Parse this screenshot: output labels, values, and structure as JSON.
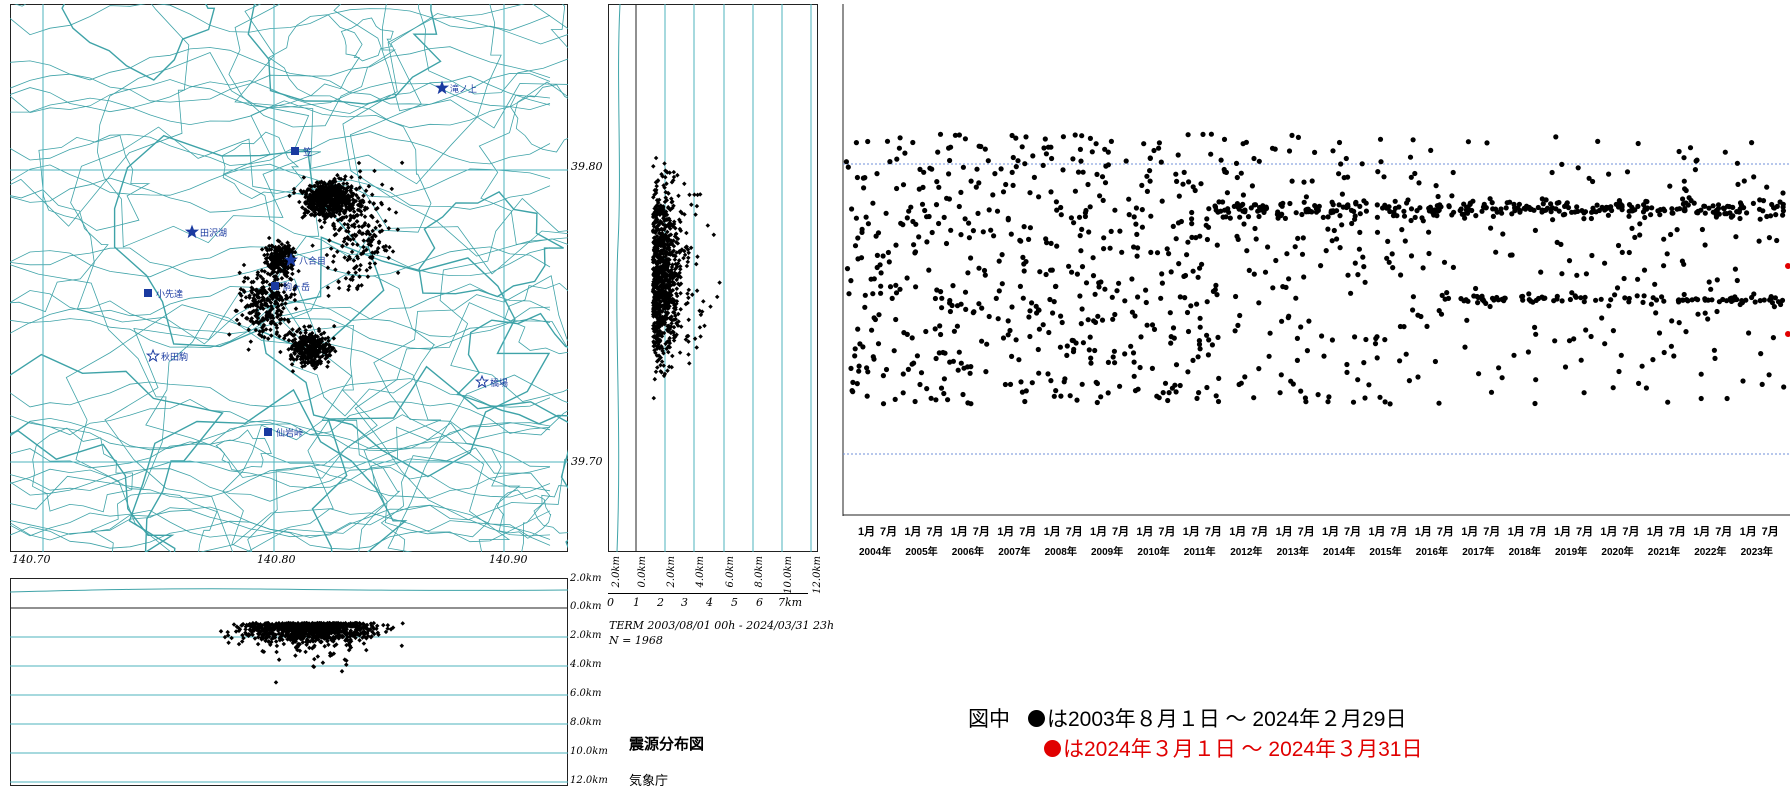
{
  "map": {
    "lat_labels": [
      "39.80",
      "39.70"
    ],
    "lon_labels": [
      "140.70",
      "140.80",
      "140.90"
    ],
    "places": [
      {
        "id": "taki",
        "name": "滝ノ上",
        "marker": "star-filled"
      },
      {
        "id": "kasa",
        "name": "笠",
        "marker": "square-filled"
      },
      {
        "id": "tazawako",
        "name": "田沢湖",
        "marker": "star-filled"
      },
      {
        "id": "hachimantai",
        "name": "八合目",
        "marker": "star-filled"
      },
      {
        "id": "komaga",
        "name": "駒ヶ岳",
        "marker": "square-filled"
      },
      {
        "id": "kosomu",
        "name": "小先達",
        "marker": "square-filled"
      },
      {
        "id": "akitakoma",
        "name": "秋田駒",
        "marker": "star-open"
      },
      {
        "id": "hashiba",
        "name": "橋場",
        "marker": "star-open"
      },
      {
        "id": "sengan",
        "name": "仙岩峠",
        "marker": "square-filled"
      }
    ]
  },
  "ns_section": {
    "depth_labels": [
      "2.0km",
      "0.0km",
      "2.0km",
      "4.0km",
      "6.0km",
      "8.0km",
      "10.0km",
      "12.0km"
    ],
    "scale_labels": [
      "0",
      "1",
      "2",
      "3",
      "4",
      "5",
      "6",
      "7km"
    ]
  },
  "ew_section": {
    "depth_labels": [
      "2.0km",
      "0.0km",
      "2.0km",
      "4.0km",
      "6.0km",
      "8.0km",
      "10.0km",
      "12.0km"
    ]
  },
  "term_text": "TERM 2003/08/01 00h - 2024/03/31 23h",
  "count_text": "N = 1968",
  "figure_title": "震源分布図",
  "agency": "気象庁",
  "timeline": {
    "years": [
      "2004年",
      "2005年",
      "2006年",
      "2007年",
      "2008年",
      "2009年",
      "2010年",
      "2011年",
      "2012年",
      "2013年",
      "2014年",
      "2015年",
      "2016年",
      "2017年",
      "2018年",
      "2019年",
      "2020年",
      "2021年",
      "2022年",
      "2023年"
    ],
    "months": [
      "1月",
      "7月"
    ]
  },
  "legend": {
    "prefix": "図中",
    "black_text": "は2003年８月１日 ～ 2024年２月29日",
    "red_text": "は2024年３月１日 ～ 2024年３月31日",
    "black_color": "#000000",
    "red_color": "#e00000"
  },
  "colors": {
    "contour": "#3fa3a8",
    "grid": "#4db3bd",
    "place": "#1a3aa0",
    "dotted_line": "#6f8fd8"
  }
}
